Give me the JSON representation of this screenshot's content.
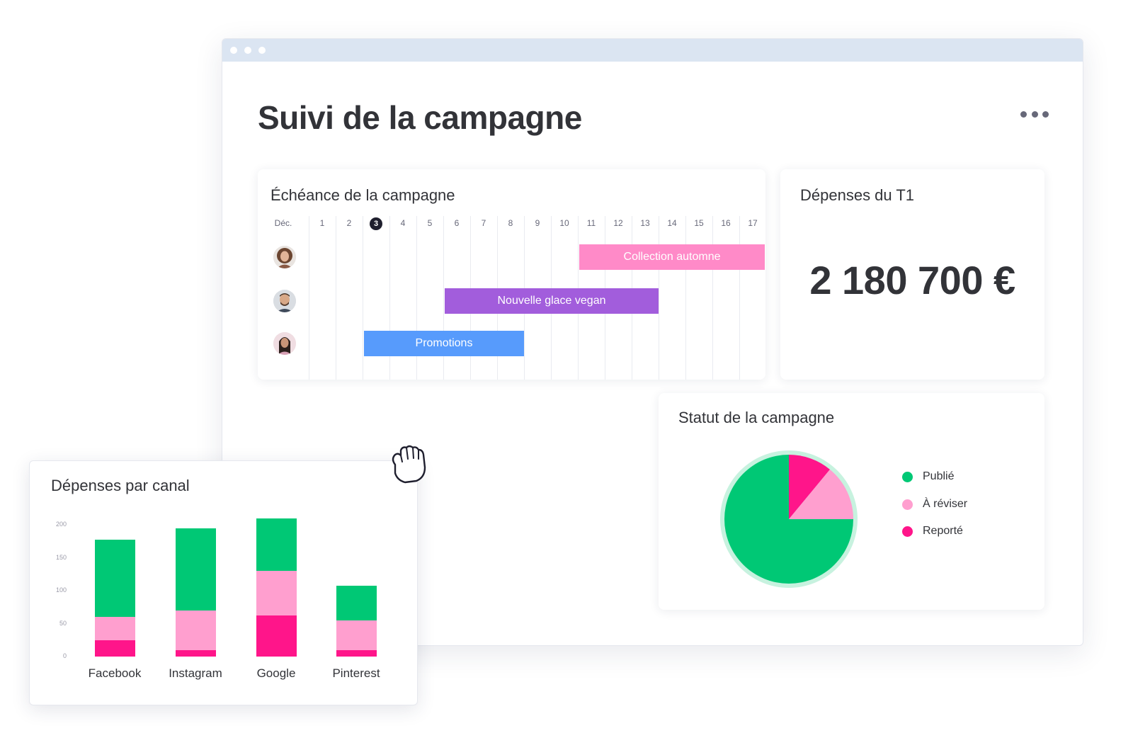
{
  "window": {
    "title": "Suivi de la campagne"
  },
  "timeline": {
    "title": "Échéance de la campagne",
    "month_label": "Déc.",
    "days": [
      "1",
      "2",
      "3",
      "4",
      "5",
      "6",
      "7",
      "8",
      "9",
      "10",
      "11",
      "12",
      "13",
      "14",
      "15",
      "16",
      "17"
    ],
    "today": "3",
    "bars": [
      {
        "label": "Collection automne",
        "start_day": 11,
        "end_day": 17,
        "color": "#ff8ac8"
      },
      {
        "label": "Nouvelle glace vegan",
        "start_day": 6,
        "end_day": 13,
        "color": "#a25ddc"
      },
      {
        "label": "Promotions",
        "start_day": 3,
        "end_day": 8,
        "color": "#579bfc"
      }
    ]
  },
  "spend": {
    "title": "Dépenses du T1",
    "value": "2 180 700 €"
  },
  "status": {
    "title": "Statut de la campagne",
    "legend": [
      {
        "label": "Publié",
        "color": "#00c875"
      },
      {
        "label": "À réviser",
        "color": "#ff9fcf"
      },
      {
        "label": "Reporté",
        "color": "#ff158a"
      }
    ]
  },
  "channel": {
    "title": "Dépenses par canal",
    "y_ticks": [
      "200",
      "150",
      "100",
      "50",
      "0"
    ]
  },
  "chart_data": [
    {
      "type": "pie",
      "title": "Statut de la campagne",
      "labels": [
        "Publié",
        "À réviser",
        "Reporté"
      ],
      "values": [
        75,
        14,
        11
      ],
      "colors": [
        "#00c875",
        "#ff9fcf",
        "#ff158a"
      ]
    },
    {
      "type": "bar",
      "stacked": true,
      "title": "Dépenses par canal",
      "categories": [
        "Facebook",
        "Instagram",
        "Google",
        "Pinterest"
      ],
      "ylim": [
        0,
        200
      ],
      "series": [
        {
          "name": "Reporté",
          "values": [
            25,
            10,
            62,
            10
          ],
          "color": "#ff158a"
        },
        {
          "name": "À réviser",
          "values": [
            35,
            60,
            68,
            45
          ],
          "color": "#ff9fcf"
        },
        {
          "name": "Publié",
          "values": [
            117,
            125,
            80,
            53
          ],
          "color": "#00c875"
        }
      ]
    }
  ],
  "icons": {
    "more": "more-dots-icon",
    "cursor": "grab-hand-icon",
    "avatars": [
      "avatar-woman-curly",
      "avatar-man-beard",
      "avatar-woman-dark"
    ]
  }
}
